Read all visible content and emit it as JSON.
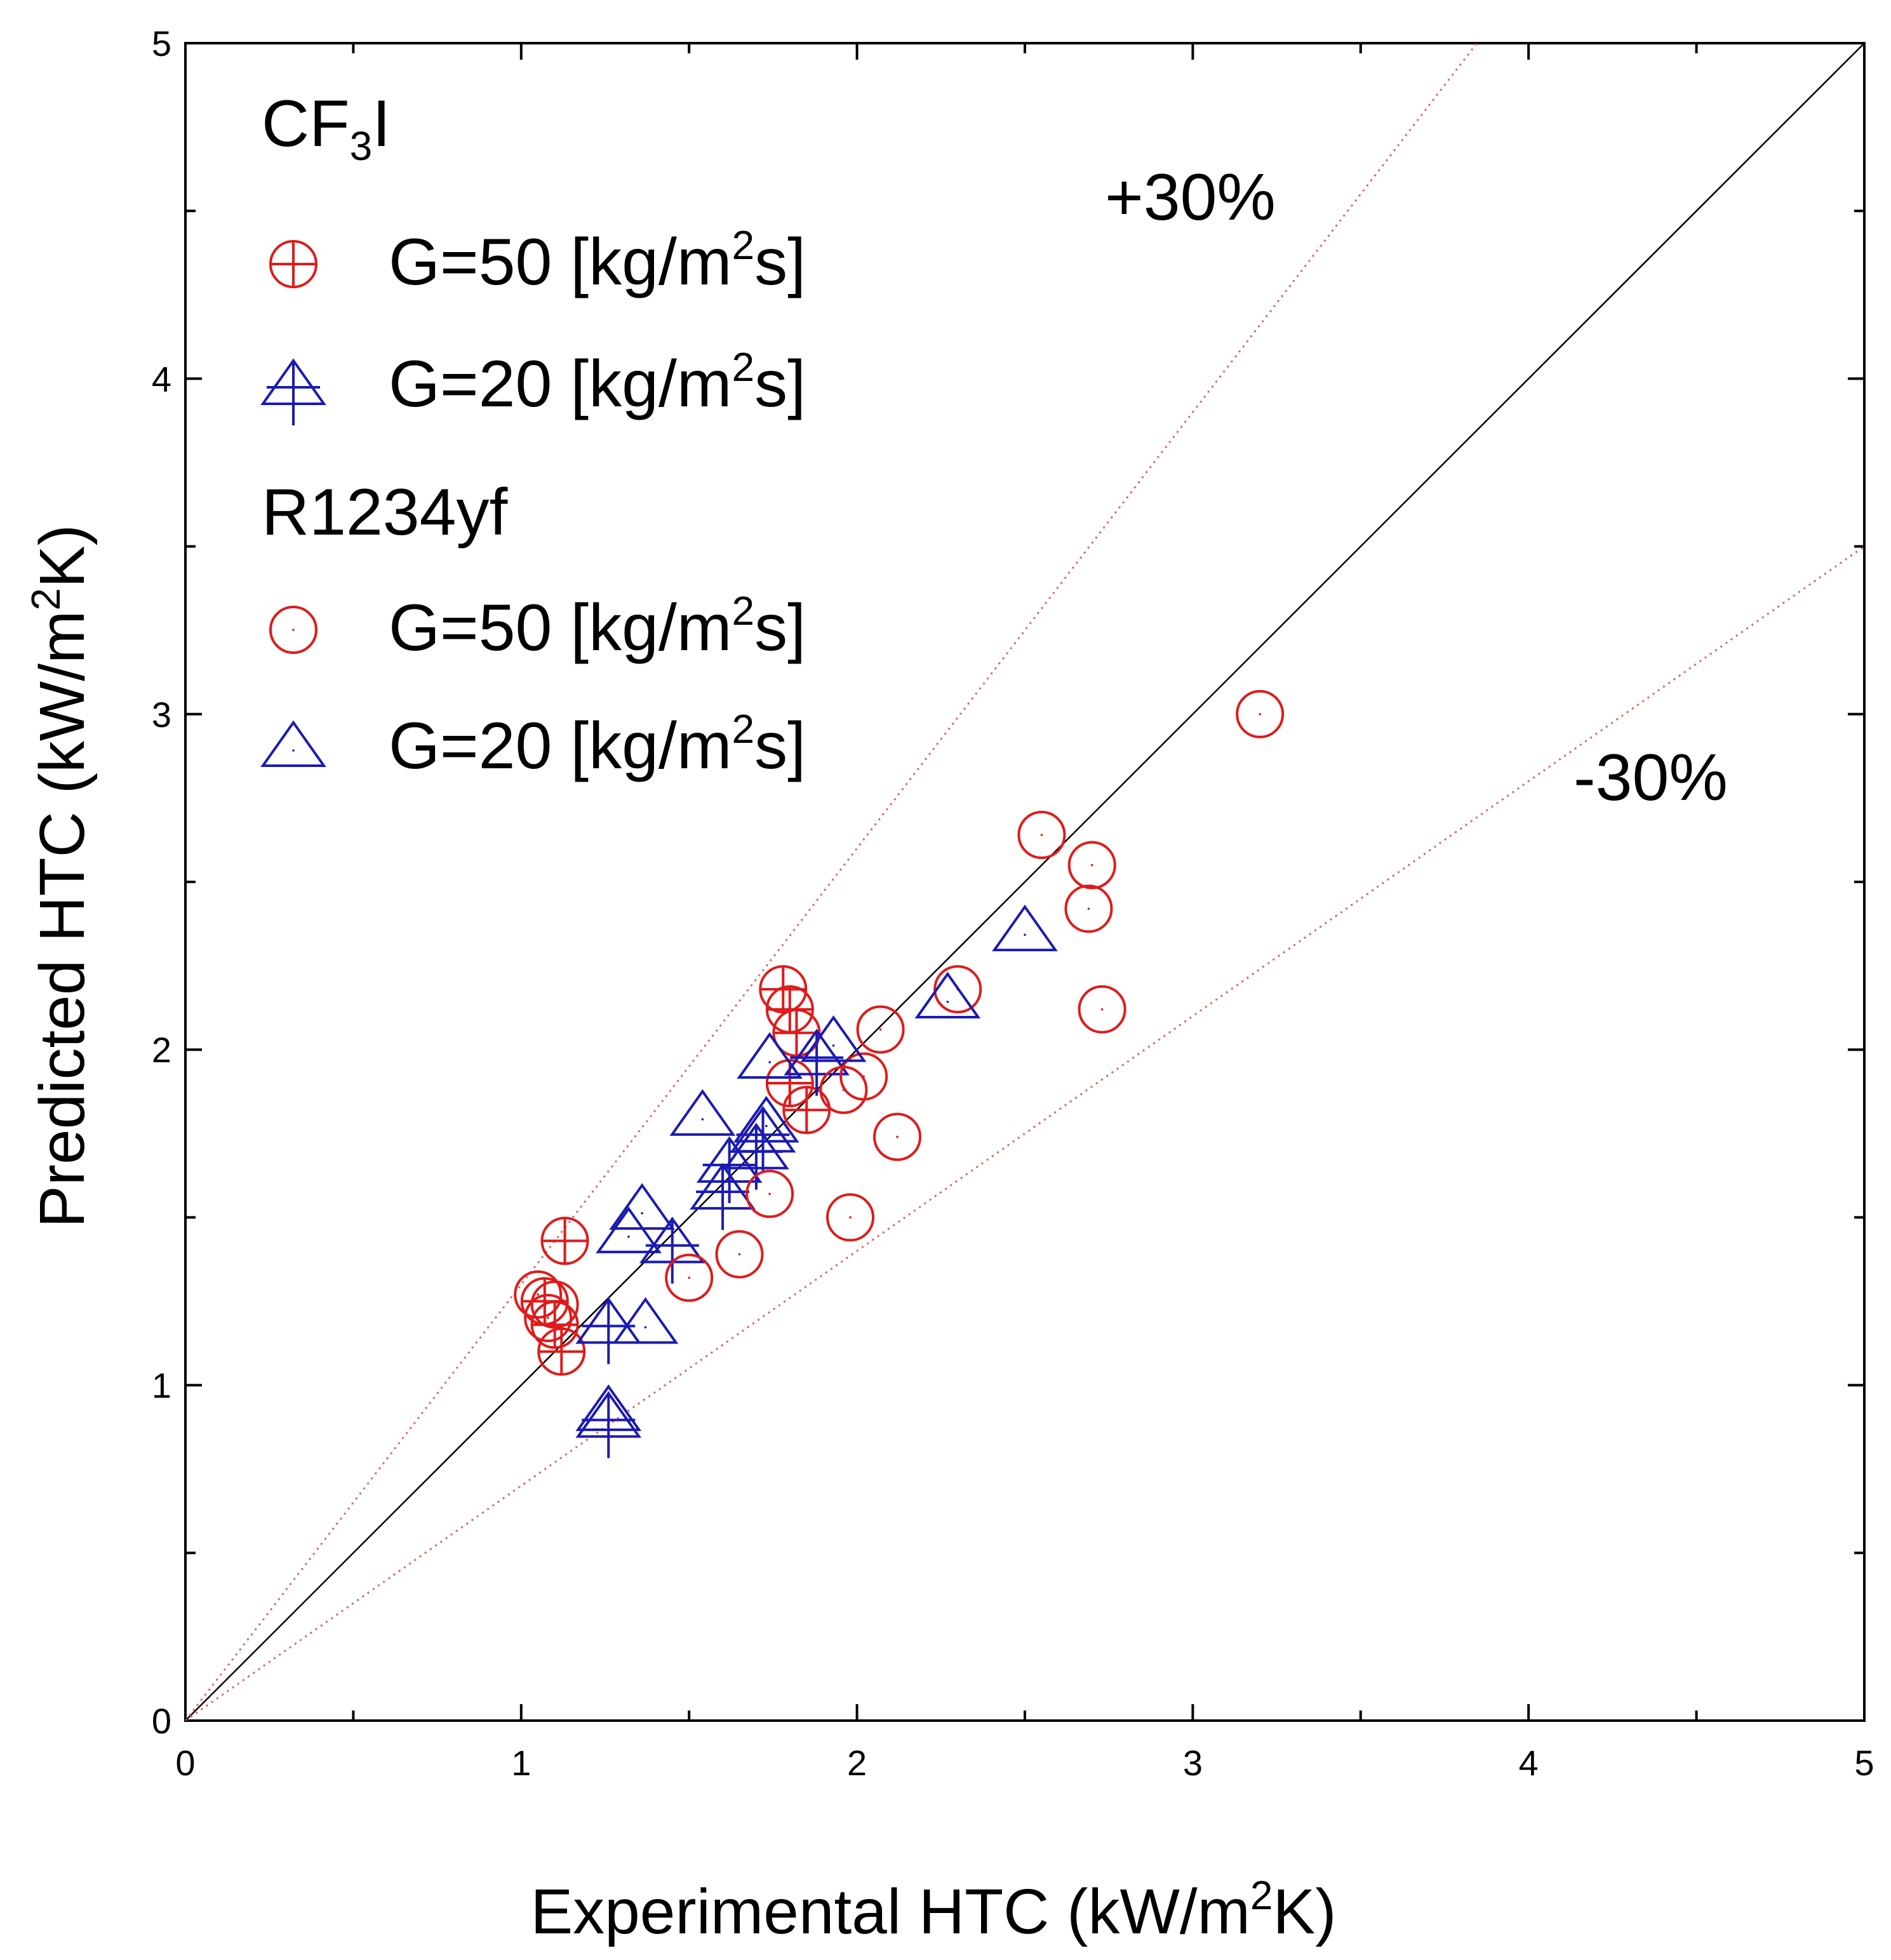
{
  "chart_data": {
    "type": "scatter",
    "xlabel_main": "Experimental HTC (kW/m",
    "xlabel_sup": "2",
    "xlabel_end": "K)",
    "ylabel_main": "Predicted HTC (kW/m",
    "ylabel_sup": "2",
    "ylabel_end": "K)",
    "xlim": [
      0,
      5
    ],
    "ylim": [
      0,
      5
    ],
    "major_ticks": [
      "0",
      "1",
      "2",
      "3",
      "4",
      "5"
    ],
    "minor_step": 0.5,
    "reference_lines": [
      {
        "name": "parity",
        "slope": 1.0,
        "color": "#000000",
        "style": "solid"
      },
      {
        "name": "plus30",
        "slope": 1.3,
        "color": "#e06060",
        "style": "dotted"
      },
      {
        "name": "minus30",
        "slope": 0.7,
        "color": "#e06060",
        "style": "dotted"
      }
    ],
    "annotations": {
      "plus": "+30%",
      "minus": "-30%"
    },
    "legend": {
      "group1_base": "CF",
      "group1_sub": "3",
      "group1_end": "I",
      "group2": "R1234yf",
      "entry_prefix": "G=",
      "entry_unit_open": "[kg/m",
      "entry_unit_sup": "2",
      "entry_unit_end": "s]",
      "entries": [
        {
          "name": "CF3I G=50",
          "g": "50",
          "marker": "crossed-circle",
          "color": "#e01a1a"
        },
        {
          "name": "CF3I G=20",
          "g": "20",
          "marker": "crossed-triangle",
          "color": "#1a1ab4"
        },
        {
          "name": "R1234yf G=50",
          "g": "50",
          "marker": "circle",
          "color": "#e01a1a"
        },
        {
          "name": "R1234yf G=20",
          "g": "20",
          "marker": "triangle",
          "color": "#1a1ab4"
        }
      ]
    },
    "series": [
      {
        "name": "CF3I G=50",
        "marker": "crossed-circle",
        "color": "#e01a1a",
        "points": [
          [
            1.13,
            1.43
          ],
          [
            1.07,
            1.25
          ],
          [
            1.1,
            1.18
          ],
          [
            1.12,
            1.1
          ],
          [
            1.78,
            2.18
          ],
          [
            1.8,
            2.12
          ],
          [
            1.82,
            2.05
          ],
          [
            1.85,
            1.82
          ],
          [
            1.8,
            1.9
          ]
        ]
      },
      {
        "name": "CF3I G=20",
        "marker": "crossed-triangle",
        "color": "#1a1ab4",
        "points": [
          [
            1.26,
            0.9
          ],
          [
            1.26,
            1.18
          ],
          [
            1.45,
            1.42
          ],
          [
            1.6,
            1.58
          ],
          [
            1.62,
            1.66
          ],
          [
            1.7,
            1.7
          ],
          [
            1.72,
            1.75
          ],
          [
            1.88,
            1.98
          ]
        ]
      },
      {
        "name": "R1234yf G=50",
        "marker": "circle",
        "color": "#e01a1a",
        "points": [
          [
            3.2,
            3.0
          ],
          [
            2.55,
            2.64
          ],
          [
            2.7,
            2.55
          ],
          [
            2.69,
            2.42
          ],
          [
            2.73,
            2.12
          ],
          [
            2.3,
            2.18
          ],
          [
            2.07,
            2.06
          ],
          [
            2.02,
            1.92
          ],
          [
            1.96,
            1.88
          ],
          [
            2.12,
            1.74
          ],
          [
            1.98,
            1.5
          ],
          [
            1.74,
            1.57
          ],
          [
            1.65,
            1.39
          ],
          [
            1.5,
            1.32
          ],
          [
            1.05,
            1.27
          ],
          [
            1.1,
            1.24
          ],
          [
            1.08,
            1.2
          ]
        ]
      },
      {
        "name": "R1234yf G=20",
        "marker": "triangle",
        "color": "#1a1ab4",
        "points": [
          [
            2.5,
            2.35
          ],
          [
            2.27,
            2.15
          ],
          [
            1.93,
            2.02
          ],
          [
            1.74,
            1.97
          ],
          [
            1.54,
            1.8
          ],
          [
            1.73,
            1.78
          ],
          [
            1.36,
            1.52
          ],
          [
            1.32,
            1.45
          ],
          [
            1.37,
            1.18
          ],
          [
            1.26,
            0.92
          ]
        ]
      }
    ]
  }
}
